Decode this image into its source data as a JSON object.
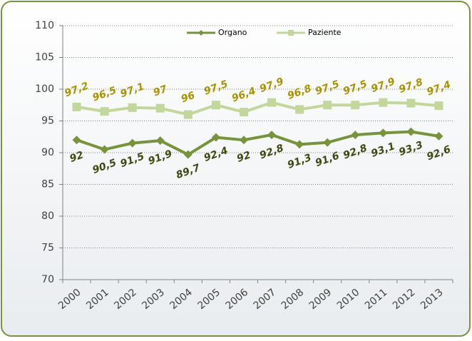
{
  "chart_data": {
    "type": "line",
    "categories": [
      "2000",
      "2001",
      "2002",
      "2003",
      "2004",
      "2005",
      "2006",
      "2007",
      "2008",
      "2009",
      "2010",
      "2011",
      "2012",
      "2013"
    ],
    "series": [
      {
        "name": "Organo",
        "color": "#77933c",
        "marker": "diamond",
        "label_color": "#3a4a10",
        "values": [
          92,
          90.5,
          91.5,
          91.9,
          89.7,
          92.4,
          92,
          92.8,
          91.3,
          91.6,
          92.8,
          93.1,
          93.3,
          92.6
        ],
        "value_labels": [
          "92",
          "90,5",
          "91,5",
          "91,9",
          "89,7",
          "92,4",
          "92",
          "92,8",
          "91,3",
          "91,6",
          "92,8",
          "93,1",
          "93,3",
          "92,6"
        ]
      },
      {
        "name": "Paziente",
        "color": "#c3d69b",
        "marker": "square",
        "label_color": "#a89400",
        "values": [
          97.2,
          96.5,
          97.1,
          97,
          96,
          97.5,
          96.4,
          97.9,
          96.8,
          97.5,
          97.5,
          97.9,
          97.8,
          97.4
        ],
        "value_labels": [
          "97,2",
          "96,5",
          "97,1",
          "97",
          "96",
          "97,5",
          "96,4",
          "97,9",
          "96,8",
          "97,5",
          "97,5",
          "97,9",
          "97,8",
          "97,4"
        ]
      }
    ],
    "ylim": [
      70,
      110
    ],
    "yticks": [
      70,
      75,
      80,
      85,
      90,
      95,
      100,
      105,
      110
    ],
    "grid": true
  }
}
